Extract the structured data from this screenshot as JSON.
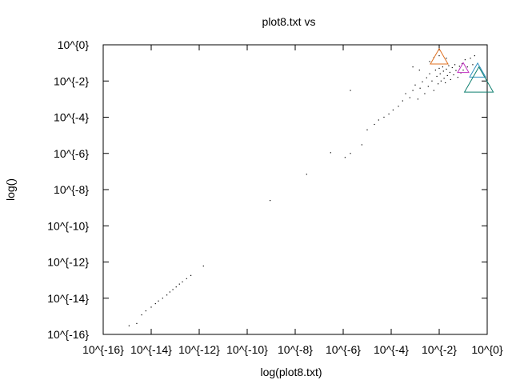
{
  "chart_data": {
    "type": "scatter",
    "title": "plot8.txt vs",
    "xlabel": "log(plot8.txt)",
    "ylabel": "log()",
    "xscale": "log",
    "yscale": "log",
    "xlim": [
      1e-16,
      1
    ],
    "ylim": [
      1e-16,
      1
    ],
    "x_ticks": [
      -16,
      -14,
      -12,
      -10,
      -8,
      -6,
      -4,
      -2,
      0
    ],
    "x_tick_labels": [
      "10^{-16}",
      "10^{-14}",
      "10^{-12}",
      "10^{-10}",
      "10^{-8}",
      "10^{-6}",
      "10^{-4}",
      "10^{-2}",
      "10^{0}"
    ],
    "y_ticks": [
      0,
      -2,
      -4,
      -6,
      -8,
      -10,
      -12,
      -14,
      -16
    ],
    "y_tick_labels": [
      "10^{0}",
      "10^{-2}",
      "10^{-4}",
      "10^{-6}",
      "10^{-8}",
      "10^{-10}",
      "10^{-12}",
      "10^{-14}",
      "10^{-16}"
    ],
    "grid": false,
    "point_color": "#000000",
    "points": [
      [
        1.2e-15,
        3e-16
      ],
      [
        2.5e-15,
        4e-16
      ],
      [
        4e-15,
        1.2e-15
      ],
      [
        6e-15,
        2e-15
      ],
      [
        1e-14,
        3.2e-15
      ],
      [
        1.5e-14,
        5e-15
      ],
      [
        2e-14,
        7e-15
      ],
      [
        3e-14,
        1e-14
      ],
      [
        4.5e-14,
        1.5e-14
      ],
      [
        6e-14,
        2.2e-14
      ],
      [
        8e-14,
        3e-14
      ],
      [
        1.1e-13,
        4.2e-14
      ],
      [
        1.5e-13,
        6e-14
      ],
      [
        2e-13,
        8e-14
      ],
      [
        3e-13,
        1.2e-13
      ],
      [
        4.5e-13,
        1.8e-13
      ],
      [
        1.5e-12,
        6e-13
      ],
      [
        9e-10,
        2.5e-09
      ],
      [
        3e-08,
        7e-08
      ],
      [
        3e-07,
        1.1e-06
      ],
      [
        1.2e-06,
        6e-07
      ],
      [
        2e-06,
        1e-06
      ],
      [
        6e-06,
        3e-06
      ],
      [
        2e-06,
        0.003
      ],
      [
        1e-05,
        2e-05
      ],
      [
        2e-05,
        4e-05
      ],
      [
        3e-05,
        7e-05
      ],
      [
        5e-05,
        0.0001
      ],
      [
        8e-05,
        0.00015
      ],
      [
        0.00012,
        0.00025
      ],
      [
        0.0002,
        0.0004
      ],
      [
        0.0003,
        0.0008
      ],
      [
        0.0004,
        0.002
      ],
      [
        0.0006,
        0.0012
      ],
      [
        0.0008,
        0.003
      ],
      [
        0.001,
        0.006
      ],
      [
        0.0013,
        0.001
      ],
      [
        0.0016,
        0.004
      ],
      [
        0.002,
        0.009
      ],
      [
        0.0025,
        0.002
      ],
      [
        0.003,
        0.015
      ],
      [
        0.0035,
        0.005
      ],
      [
        0.004,
        0.025
      ],
      [
        0.005,
        0.01
      ],
      [
        0.006,
        0.003
      ],
      [
        0.007,
        0.04
      ],
      [
        0.008,
        0.018
      ],
      [
        0.009,
        0.007
      ],
      [
        0.01,
        0.05
      ],
      [
        0.011,
        0.025
      ],
      [
        0.012,
        0.01
      ],
      [
        0.014,
        0.06
      ],
      [
        0.015,
        0.035
      ],
      [
        0.016,
        0.014
      ],
      [
        0.018,
        0.008
      ],
      [
        0.02,
        0.045
      ],
      [
        0.022,
        0.02
      ],
      [
        0.025,
        0.07
      ],
      [
        0.028,
        0.03
      ],
      [
        0.03,
        0.012
      ],
      [
        0.035,
        0.055
      ],
      [
        0.04,
        0.022
      ],
      [
        0.045,
        0.08
      ],
      [
        0.05,
        0.038
      ],
      [
        0.06,
        0.016
      ],
      [
        0.07,
        0.065
      ],
      [
        0.08,
        0.028
      ],
      [
        0.09,
        0.09
      ],
      [
        0.1,
        0.04
      ],
      [
        0.12,
        0.15
      ],
      [
        0.15,
        0.06
      ],
      [
        0.2,
        0.18
      ],
      [
        0.25,
        0.08
      ],
      [
        0.3,
        0.25
      ],
      [
        0.01,
        0.25
      ],
      [
        0.02,
        0.18
      ],
      [
        0.004,
        0.12
      ],
      [
        0.006,
        0.2
      ],
      [
        0.0008,
        0.06
      ],
      [
        0.0015,
        0.04
      ]
    ],
    "markers": [
      {
        "x": 0.01,
        "y": 0.23,
        "color": "#e07020",
        "size": 22
      },
      {
        "x": 0.1,
        "y": 0.055,
        "color": "#c030c0",
        "size": 14
      },
      {
        "x": 0.4,
        "y": 0.04,
        "color": "#3090c0",
        "size": 20
      },
      {
        "x": 0.45,
        "y": 0.012,
        "color": "#108070",
        "size": 36
      }
    ]
  }
}
